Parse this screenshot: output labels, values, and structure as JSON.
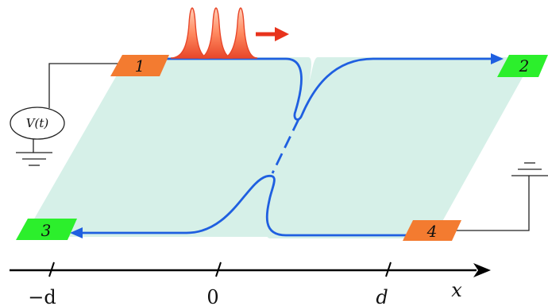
{
  "contacts": [
    {
      "id": "1",
      "label": "1",
      "color": "#f37b30"
    },
    {
      "id": "2",
      "label": "2",
      "color": "#2cef2c"
    },
    {
      "id": "3",
      "label": "3",
      "color": "#2cef2c"
    },
    {
      "id": "4",
      "label": "4",
      "color": "#f37b30"
    }
  ],
  "voltage_source": {
    "label": "V(t)"
  },
  "axis": {
    "variable": "x",
    "ticks": [
      {
        "label": "−d"
      },
      {
        "label": "0"
      },
      {
        "label": "d"
      }
    ]
  },
  "colors": {
    "sample": "#d6f0e8",
    "edge_channel": "#1f5fe0",
    "pulse": "#e8472a",
    "pulse_fill": "#ff8a60",
    "arrow": "#e8331c",
    "wire": "#222222"
  }
}
